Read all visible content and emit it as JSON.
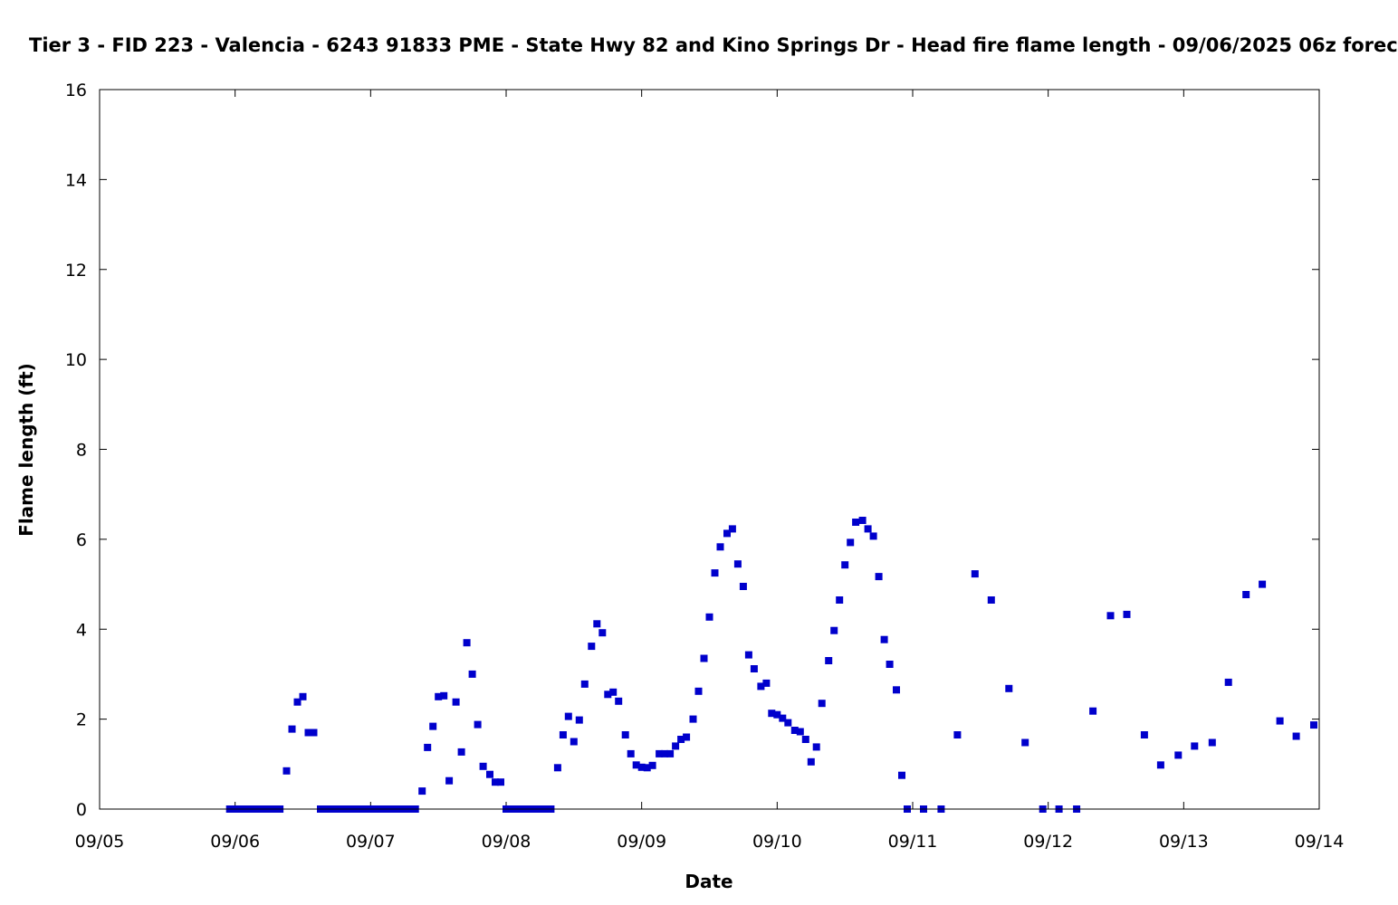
{
  "chart_data": {
    "type": "scatter",
    "title": "Tier 3 - FID 223 - Valencia - 6243 91833 PME - State Hwy 82 and Kino Springs Dr - Head fire flame length - 09/06/2025 06z forec",
    "xlabel": "Date",
    "ylabel": "Flame length (ft)",
    "x_ticks": [
      "09/05",
      "09/06",
      "09/07",
      "09/08",
      "09/09",
      "09/10",
      "09/11",
      "09/12",
      "09/13",
      "09/14"
    ],
    "y_ticks": [
      "0",
      "2",
      "4",
      "6",
      "8",
      "10",
      "12",
      "14",
      "16"
    ],
    "x_unit": "days since 09/05 00z",
    "xlim": [
      0,
      9
    ],
    "ylim": [
      0,
      16
    ],
    "grid": false,
    "marker_color": "#0000cc",
    "series": [
      {
        "points": [
          [
            0.96,
            0
          ],
          [
            1.0,
            0
          ],
          [
            1.04,
            0
          ],
          [
            1.08,
            0
          ],
          [
            1.12,
            0
          ],
          [
            1.17,
            0
          ],
          [
            1.21,
            0
          ],
          [
            1.25,
            0
          ],
          [
            1.29,
            0
          ],
          [
            1.33,
            0
          ],
          [
            1.38,
            0.85
          ],
          [
            1.42,
            1.78
          ],
          [
            1.46,
            2.38
          ],
          [
            1.5,
            2.5
          ],
          [
            1.54,
            1.7
          ],
          [
            1.58,
            1.7
          ],
          [
            1.63,
            0
          ],
          [
            1.67,
            0
          ],
          [
            1.71,
            0
          ],
          [
            1.75,
            0
          ],
          [
            1.79,
            0
          ],
          [
            1.83,
            0
          ],
          [
            1.88,
            0
          ],
          [
            1.92,
            0
          ],
          [
            1.96,
            0
          ],
          [
            2.0,
            0
          ],
          [
            2.04,
            0
          ],
          [
            2.08,
            0
          ],
          [
            2.13,
            0
          ],
          [
            2.17,
            0
          ],
          [
            2.21,
            0
          ],
          [
            2.25,
            0
          ],
          [
            2.29,
            0
          ],
          [
            2.33,
            0
          ],
          [
            2.38,
            0.4
          ],
          [
            2.42,
            1.37
          ],
          [
            2.46,
            1.84
          ],
          [
            2.5,
            2.5
          ],
          [
            2.54,
            2.52
          ],
          [
            2.58,
            0.63
          ],
          [
            2.63,
            2.38
          ],
          [
            2.67,
            1.27
          ],
          [
            2.71,
            3.7
          ],
          [
            2.75,
            3.0
          ],
          [
            2.79,
            1.88
          ],
          [
            2.83,
            0.95
          ],
          [
            2.88,
            0.77
          ],
          [
            2.92,
            0.6
          ],
          [
            2.96,
            0.6
          ],
          [
            3.0,
            0
          ],
          [
            3.04,
            0
          ],
          [
            3.08,
            0
          ],
          [
            3.13,
            0
          ],
          [
            3.17,
            0
          ],
          [
            3.21,
            0
          ],
          [
            3.25,
            0
          ],
          [
            3.29,
            0
          ],
          [
            3.33,
            0
          ],
          [
            3.38,
            0.92
          ],
          [
            3.42,
            1.65
          ],
          [
            3.46,
            2.06
          ],
          [
            3.5,
            1.5
          ],
          [
            3.54,
            1.98
          ],
          [
            3.58,
            2.78
          ],
          [
            3.63,
            3.62
          ],
          [
            3.67,
            4.12
          ],
          [
            3.71,
            3.92
          ],
          [
            3.75,
            2.55
          ],
          [
            3.79,
            2.6
          ],
          [
            3.83,
            2.4
          ],
          [
            3.88,
            1.65
          ],
          [
            3.92,
            1.23
          ],
          [
            3.96,
            0.98
          ],
          [
            4.0,
            0.93
          ],
          [
            4.04,
            0.92
          ],
          [
            4.08,
            0.97
          ],
          [
            4.13,
            1.23
          ],
          [
            4.17,
            1.23
          ],
          [
            4.21,
            1.23
          ],
          [
            4.25,
            1.4
          ],
          [
            4.29,
            1.55
          ],
          [
            4.33,
            1.6
          ],
          [
            4.38,
            2.0
          ],
          [
            4.42,
            2.62
          ],
          [
            4.46,
            3.35
          ],
          [
            4.5,
            4.27
          ],
          [
            4.54,
            5.25
          ],
          [
            4.58,
            5.83
          ],
          [
            4.63,
            6.13
          ],
          [
            4.67,
            6.23
          ],
          [
            4.71,
            5.45
          ],
          [
            4.75,
            4.95
          ],
          [
            4.79,
            3.43
          ],
          [
            4.83,
            3.12
          ],
          [
            4.88,
            2.73
          ],
          [
            4.92,
            2.8
          ],
          [
            4.96,
            2.13
          ],
          [
            5.0,
            2.1
          ],
          [
            5.04,
            2.02
          ],
          [
            5.08,
            1.92
          ],
          [
            5.13,
            1.75
          ],
          [
            5.17,
            1.72
          ],
          [
            5.21,
            1.55
          ],
          [
            5.25,
            1.05
          ],
          [
            5.29,
            1.38
          ],
          [
            5.33,
            2.35
          ],
          [
            5.38,
            3.3
          ],
          [
            5.42,
            3.97
          ],
          [
            5.46,
            4.65
          ],
          [
            5.5,
            5.43
          ],
          [
            5.54,
            5.93
          ],
          [
            5.58,
            6.38
          ],
          [
            5.63,
            6.42
          ],
          [
            5.67,
            6.23
          ],
          [
            5.71,
            6.07
          ],
          [
            5.75,
            5.17
          ],
          [
            5.79,
            3.77
          ],
          [
            5.83,
            3.22
          ],
          [
            5.88,
            2.65
          ],
          [
            5.92,
            0.75
          ],
          [
            5.96,
            0
          ],
          [
            6.08,
            0
          ],
          [
            6.21,
            0
          ],
          [
            6.33,
            1.65
          ],
          [
            6.46,
            5.23
          ],
          [
            6.58,
            4.65
          ],
          [
            6.71,
            2.68
          ],
          [
            6.83,
            1.48
          ],
          [
            6.96,
            0
          ],
          [
            7.08,
            0
          ],
          [
            7.21,
            0
          ],
          [
            7.33,
            2.18
          ],
          [
            7.46,
            4.3
          ],
          [
            7.58,
            4.33
          ],
          [
            7.71,
            1.65
          ],
          [
            7.83,
            0.98
          ],
          [
            7.96,
            1.2
          ],
          [
            8.08,
            1.4
          ],
          [
            8.21,
            1.48
          ],
          [
            8.33,
            2.82
          ],
          [
            8.46,
            4.77
          ],
          [
            8.58,
            5.0
          ],
          [
            8.71,
            1.96
          ],
          [
            8.83,
            1.62
          ],
          [
            8.96,
            1.87
          ]
        ]
      }
    ]
  }
}
